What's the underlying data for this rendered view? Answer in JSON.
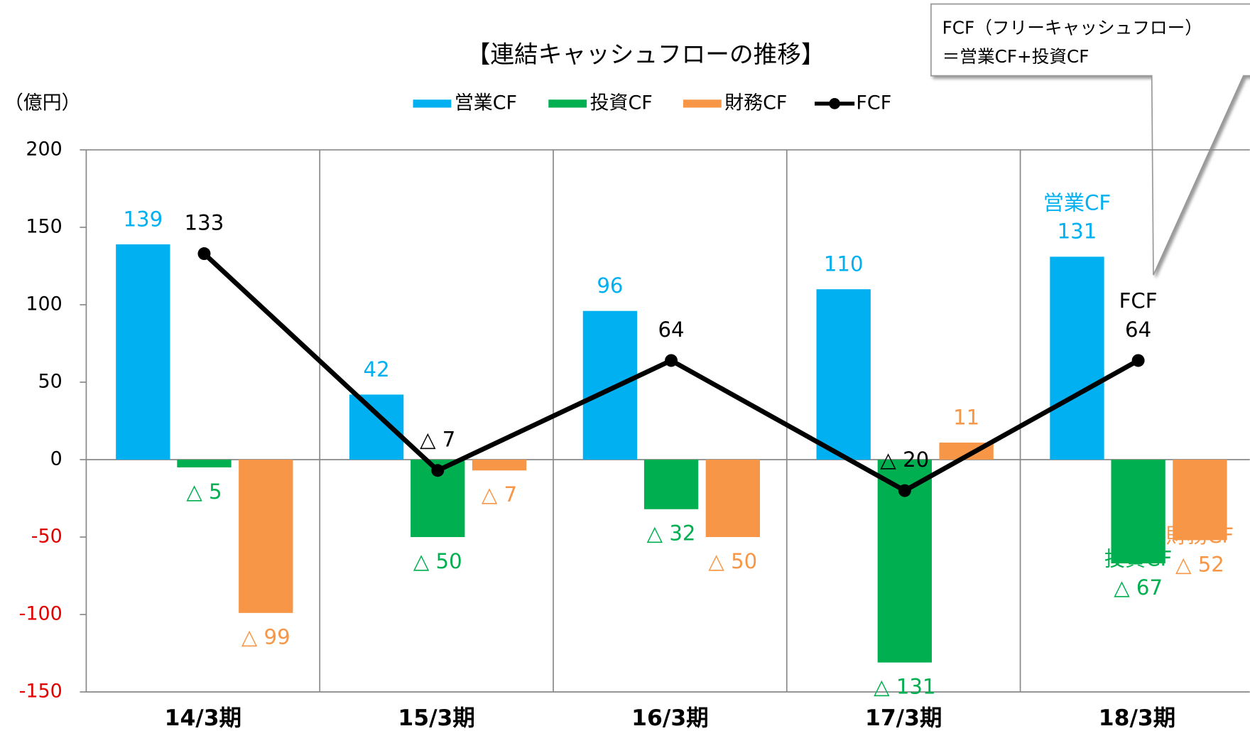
{
  "chart_data": {
    "type": "bar",
    "title": "【連結キャッシュフローの推移】",
    "y_axis_label": "（億円）",
    "annotation": [
      "FCF（フリーキャッシュフロー）",
      "＝営業CF+投資CF"
    ],
    "categories": [
      "14/3期",
      "15/3期",
      "16/3期",
      "17/3期",
      "18/3期"
    ],
    "series": [
      {
        "name": "営業CF",
        "type": "bar",
        "color": "#00b0f0",
        "values": [
          139,
          42,
          96,
          110,
          131
        ],
        "value_labels": [
          "139",
          "42",
          "96",
          "110",
          "131"
        ]
      },
      {
        "name": "投資CF",
        "type": "bar",
        "color": "#00b050",
        "values": [
          -5,
          -50,
          -32,
          -131,
          -67
        ],
        "value_labels": [
          "△ 5",
          "△ 50",
          "△ 32",
          "△ 131",
          "△ 67"
        ]
      },
      {
        "name": "財務CF",
        "type": "bar",
        "color": "#f79646",
        "values": [
          -99,
          -7,
          -50,
          11,
          -52
        ],
        "value_labels": [
          "△ 99",
          "△ 7",
          "△ 50",
          "11",
          "△ 52"
        ]
      },
      {
        "name": "FCF",
        "type": "line",
        "color": "#000000",
        "values": [
          133,
          -7,
          64,
          -20,
          64
        ],
        "value_labels": [
          "133",
          "△ 7",
          "64",
          "△ 20",
          "64"
        ]
      }
    ],
    "ylim": [
      -150,
      200
    ],
    "yticks": [
      -150,
      -100,
      -50,
      0,
      50,
      100,
      150,
      200
    ],
    "negative_tick_color": "#e00000",
    "grid": false,
    "legend": "top"
  }
}
